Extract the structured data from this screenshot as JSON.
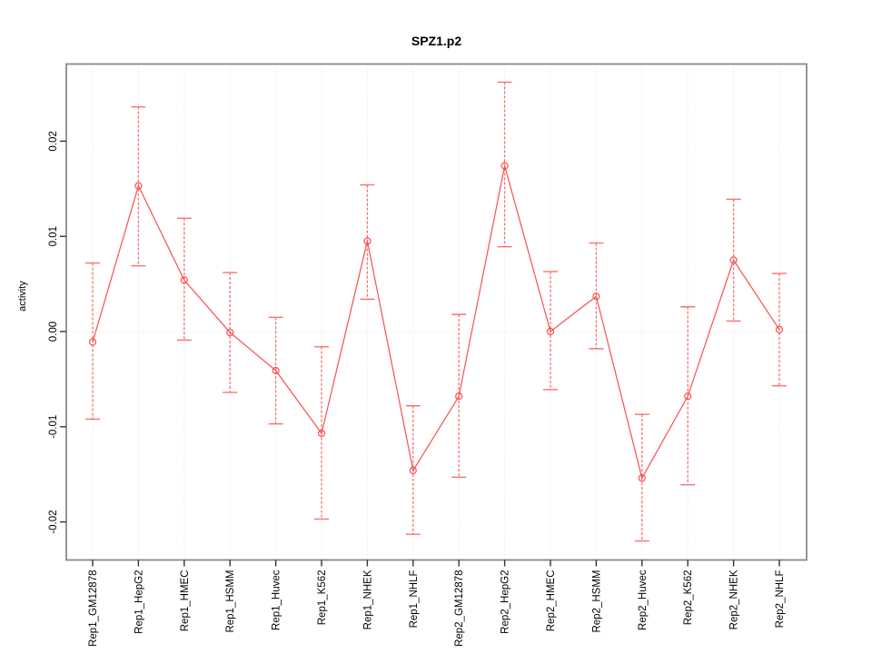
{
  "chart_data": {
    "type": "line",
    "title": "SPZ1.p2",
    "xlabel": "",
    "ylabel": "activity",
    "legend": "none",
    "grid": "dotted vertical gridline at every category; dotted horizontal line at y=0",
    "marker": "open-circle",
    "error_bar_style": "dashed vertical line with solid end caps",
    "categories": [
      "Rep1_GM12878",
      "Rep1_HepG2",
      "Rep1_HMEC",
      "Rep1_HSMM",
      "Rep1_Huvec",
      "Rep1_K562",
      "Rep1_NHEK",
      "Rep1_NHLF",
      "Rep2_GM12878",
      "Rep2_HepG2",
      "Rep2_HMEC",
      "Rep2_HSMM",
      "Rep2_Huvec",
      "Rep2_K562",
      "Rep2_NHEK",
      "Rep2_NHLF"
    ],
    "series": [
      {
        "name": "activity",
        "values": [
          -0.0011,
          0.0153,
          0.0054,
          -0.0001,
          -0.0041,
          -0.0107,
          0.0095,
          -0.0146,
          -0.0068,
          0.0174,
          0.0,
          0.0037,
          -0.0154,
          -0.0068,
          0.0075,
          0.0002
        ],
        "error_upper": [
          0.0072,
          0.0236,
          0.0119,
          0.0062,
          0.0015,
          -0.0016,
          0.0154,
          -0.0078,
          0.0018,
          0.0262,
          0.0063,
          0.0093,
          -0.0087,
          0.0026,
          0.0139,
          0.0061
        ],
        "error_lower": [
          -0.0092,
          0.0069,
          -0.0009,
          -0.0064,
          -0.0097,
          -0.0197,
          0.0034,
          -0.0213,
          -0.0153,
          0.0089,
          -0.0061,
          -0.0018,
          -0.022,
          -0.0161,
          0.0011,
          -0.0057
        ]
      }
    ],
    "ytick_labels": [
      "0.02",
      "0.01",
      "0.00",
      "-0.01",
      "-0.02"
    ],
    "ytick_values": [
      0.02,
      0.01,
      0.0,
      -0.01,
      -0.02
    ],
    "ylim": [
      -0.024,
      0.0281
    ],
    "colors": {
      "line": "#f94f4f",
      "marker": "#f94f4f",
      "error_bar": "#fb7070",
      "gridline": "#dcdcdc",
      "plot_border": "#8a8a8a",
      "tick": "#333333",
      "text": "#000000",
      "background": "#ffffff"
    }
  }
}
